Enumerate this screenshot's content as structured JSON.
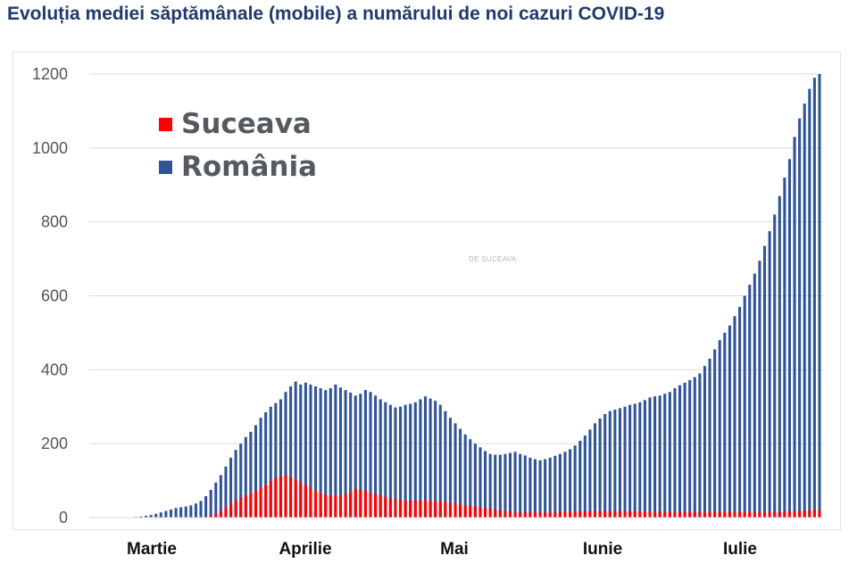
{
  "chart_data": {
    "type": "bar",
    "title": "Evoluția mediei săptămânale (mobile) a numărului de noi cazuri COVID-19",
    "xlabel": "",
    "ylabel": "",
    "ylim": [
      0,
      1200
    ],
    "yticks": [
      0,
      200,
      400,
      600,
      800,
      1000,
      1200
    ],
    "grid": true,
    "legend_position": "top-left",
    "month_labels": [
      "Martie",
      "Aprilie",
      "Mai",
      "Iunie",
      "Iulie"
    ],
    "month_start_index": [
      3,
      34,
      64,
      95,
      125
    ],
    "series": [
      {
        "name": "România",
        "color": "#2f5597",
        "values": [
          0,
          0,
          0,
          1,
          2,
          3,
          5,
          7,
          10,
          14,
          18,
          22,
          26,
          28,
          30,
          33,
          38,
          45,
          58,
          75,
          95,
          115,
          138,
          162,
          183,
          200,
          218,
          232,
          250,
          270,
          285,
          300,
          310,
          320,
          340,
          355,
          368,
          360,
          365,
          360,
          355,
          350,
          345,
          350,
          360,
          352,
          345,
          338,
          330,
          335,
          345,
          340,
          330,
          320,
          312,
          305,
          298,
          300,
          305,
          308,
          312,
          320,
          328,
          322,
          316,
          305,
          288,
          270,
          255,
          240,
          225,
          212,
          200,
          190,
          180,
          172,
          170,
          170,
          172,
          175,
          178,
          172,
          168,
          162,
          158,
          155,
          158,
          162,
          167,
          172,
          178,
          185,
          195,
          208,
          222,
          238,
          255,
          268,
          280,
          288,
          292,
          296,
          300,
          305,
          308,
          312,
          318,
          325,
          328,
          330,
          335,
          340,
          350,
          358,
          365,
          372,
          380,
          390,
          410,
          430,
          455,
          480,
          500,
          520,
          545,
          570,
          600,
          630,
          660,
          695,
          735,
          775,
          820,
          870,
          920,
          970,
          1030,
          1080,
          1120,
          1160,
          1190,
          1200
        ]
      },
      {
        "name": "Suceava",
        "color": "#ff0000",
        "values": [
          0,
          0,
          0,
          0,
          0,
          0,
          0,
          0,
          0,
          0,
          0,
          0,
          0,
          0,
          0,
          0,
          0,
          0,
          2,
          5,
          10,
          18,
          28,
          38,
          46,
          54,
          60,
          66,
          72,
          80,
          88,
          98,
          108,
          112,
          115,
          110,
          102,
          95,
          88,
          80,
          72,
          66,
          62,
          60,
          58,
          60,
          64,
          70,
          78,
          76,
          72,
          68,
          64,
          60,
          56,
          52,
          50,
          48,
          46,
          46,
          46,
          47,
          47,
          46,
          45,
          44,
          42,
          40,
          38,
          36,
          34,
          32,
          30,
          28,
          26,
          24,
          22,
          20,
          18,
          16,
          15,
          14,
          14,
          14,
          14,
          14,
          14,
          14,
          14,
          15,
          15,
          15,
          16,
          16,
          16,
          17,
          17,
          17,
          18,
          18,
          18,
          18,
          18,
          17,
          17,
          17,
          16,
          16,
          16,
          16,
          15,
          15,
          15,
          15,
          15,
          15,
          15,
          15,
          15,
          15,
          15,
          15,
          15,
          15,
          15,
          15,
          15,
          15,
          15,
          15,
          15,
          15,
          15,
          16,
          16,
          17,
          17,
          18,
          19,
          20,
          21,
          21
        ]
      }
    ]
  },
  "watermark": "DE SUCEAVA"
}
